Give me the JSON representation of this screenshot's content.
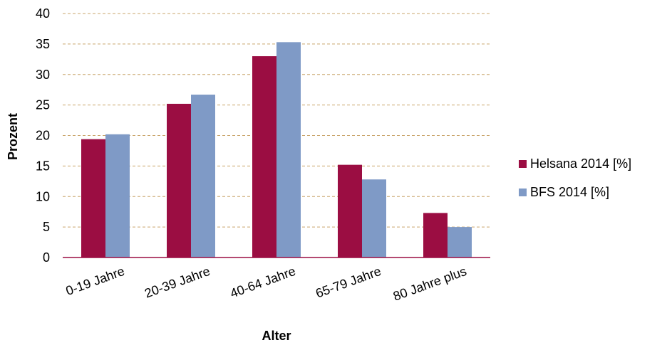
{
  "chart_data": {
    "type": "bar",
    "categories": [
      "0-19 Jahre",
      "20-39 Jahre",
      "40-64 Jahre",
      "65-79 Jahre",
      "80 Jahre plus"
    ],
    "series": [
      {
        "name": "Helsana 2014 [%]",
        "color": "#9B0D42",
        "values": [
          19.4,
          25.2,
          33.0,
          15.2,
          7.3
        ]
      },
      {
        "name": "BFS 2014 [%]",
        "color": "#7F9AC6",
        "values": [
          20.2,
          26.7,
          35.3,
          12.8,
          5.0
        ]
      }
    ],
    "xlabel": "Alter",
    "ylabel": "Prozent",
    "ylim": [
      0,
      40
    ],
    "yticks": [
      0,
      5,
      10,
      15,
      20,
      25,
      30,
      35,
      40
    ],
    "grid": true,
    "legend_position": "right",
    "axis_color": "#9B0D42",
    "grid_color": "#C9A56B"
  }
}
